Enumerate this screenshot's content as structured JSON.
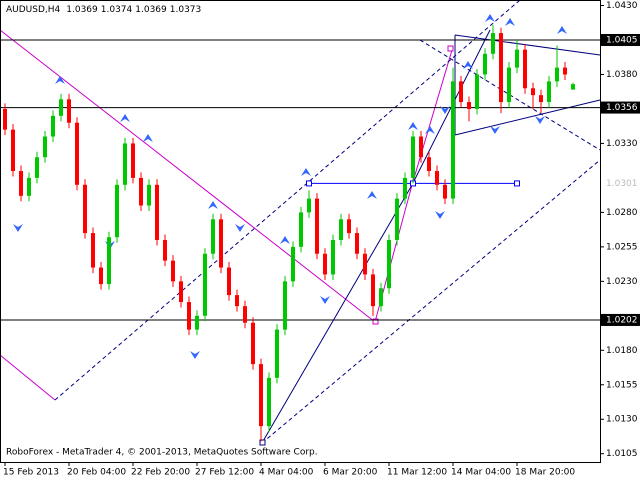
{
  "chart_data": {
    "type": "candlestick",
    "title": "AUDUSD,H4",
    "annotation": "RoboForex - MetaTrader 4, © 2001-2013, MetaQuotes Software Corp.",
    "up_color": "#00c800",
    "down_color": "#ff0000",
    "ylim": [
      1.0099,
      1.0434
    ],
    "yticks": [
      {
        "value": 1.043,
        "label": "1.0430"
      },
      {
        "value": 1.038,
        "label": "1.0380"
      },
      {
        "value": 1.033,
        "label": "1.0330"
      },
      {
        "value": 1.028,
        "label": "1.0280"
      },
      1.0255,
      {
        "value": 1.023,
        "label": "1.0230"
      },
      {
        "value": 1.018,
        "label": "1.0180"
      },
      1.0155,
      {
        "value": 1.013,
        "label": "1.0130"
      },
      1.0105
    ],
    "levels": [
      {
        "value": 1.0405,
        "color": "#000000",
        "label_style": "box"
      },
      {
        "value": 1.0356,
        "color": "#000000",
        "label_style": "box"
      },
      {
        "value": 1.0202,
        "color": "#000000",
        "label_style": "box"
      },
      {
        "value": 1.0301,
        "color": "#0000ff",
        "label_style": "plain"
      }
    ],
    "categories": [
      "15 Feb 2013",
      null,
      null,
      null,
      null,
      null,
      null,
      null,
      "20 Feb 04:00",
      null,
      null,
      null,
      null,
      null,
      null,
      null,
      "22 Feb 20:00",
      null,
      null,
      null,
      null,
      null,
      null,
      null,
      "27 Feb 12:00",
      null,
      null,
      null,
      null,
      null,
      null,
      null,
      "4 Mar 04:00",
      null,
      null,
      null,
      null,
      null,
      null,
      null,
      "6 Mar 20:00",
      null,
      null,
      null,
      null,
      null,
      null,
      null,
      "11 Mar 12:00",
      null,
      null,
      null,
      null,
      null,
      null,
      null,
      "14 Mar 04:00",
      null,
      null,
      null,
      null,
      null,
      null,
      null,
      "18 Mar 20:00",
      null,
      null,
      null,
      null,
      null,
      null,
      null
    ],
    "ohlc": [
      [
        1.0355,
        1.0359,
        1.0336,
        1.034
      ],
      [
        1.034,
        1.0344,
        1.0306,
        1.031
      ],
      [
        1.031,
        1.0314,
        1.0288,
        1.0292
      ],
      [
        1.0292,
        1.0309,
        1.0288,
        1.0305
      ],
      [
        1.0305,
        1.0324,
        1.0301,
        1.032
      ],
      [
        1.032,
        1.0339,
        1.0316,
        1.0335
      ],
      [
        1.0335,
        1.0354,
        1.0331,
        1.035
      ],
      [
        1.035,
        1.0366,
        1.0346,
        1.0362
      ],
      [
        1.0362,
        1.0366,
        1.0341,
        1.0345
      ],
      [
        1.0345,
        1.0349,
        1.0296,
        1.03
      ],
      [
        1.03,
        1.0304,
        1.0261,
        1.0265
      ],
      [
        1.0265,
        1.0269,
        1.0236,
        1.024
      ],
      [
        1.024,
        1.0244,
        1.0224,
        1.0228
      ],
      [
        1.0228,
        1.0266,
        1.0224,
        1.0262
      ],
      [
        1.0262,
        1.0304,
        1.0258,
        1.03
      ],
      [
        1.03,
        1.0334,
        1.0296,
        1.033
      ],
      [
        1.033,
        1.0334,
        1.0301,
        1.0305
      ],
      [
        1.0305,
        1.0309,
        1.0281,
        1.0285
      ],
      [
        1.0285,
        1.0304,
        1.0281,
        1.03
      ],
      [
        1.03,
        1.0304,
        1.0256,
        1.026
      ],
      [
        1.026,
        1.0264,
        1.0241,
        1.0245
      ],
      [
        1.0245,
        1.0249,
        1.0226,
        1.023
      ],
      [
        1.023,
        1.0234,
        1.0211,
        1.0215
      ],
      [
        1.0215,
        1.0219,
        1.0191,
        1.0195
      ],
      [
        1.0195,
        1.0209,
        1.0191,
        1.0205
      ],
      [
        1.0205,
        1.0254,
        1.0201,
        1.025
      ],
      [
        1.025,
        1.0279,
        1.0246,
        1.0275
      ],
      [
        1.0275,
        1.0279,
        1.0236,
        1.024
      ],
      [
        1.024,
        1.0244,
        1.0216,
        1.022
      ],
      [
        1.022,
        1.0224,
        1.0208,
        1.0212
      ],
      [
        1.0212,
        1.0216,
        1.0196,
        1.02
      ],
      [
        1.02,
        1.0204,
        1.0166,
        1.017
      ],
      [
        1.017,
        1.0174,
        1.0114,
        1.0125
      ],
      [
        1.0125,
        1.0164,
        1.0121,
        1.016
      ],
      [
        1.016,
        1.0199,
        1.0156,
        1.0195
      ],
      [
        1.0195,
        1.0234,
        1.0191,
        1.023
      ],
      [
        1.023,
        1.0259,
        1.0226,
        1.0255
      ],
      [
        1.0255,
        1.0284,
        1.0251,
        1.028
      ],
      [
        1.028,
        1.0296,
        1.0276,
        1.029
      ],
      [
        1.029,
        1.0294,
        1.0246,
        1.025
      ],
      [
        1.025,
        1.0254,
        1.0231,
        1.0235
      ],
      [
        1.0235,
        1.0264,
        1.0231,
        1.026
      ],
      [
        1.026,
        1.0279,
        1.0256,
        1.0275
      ],
      [
        1.0275,
        1.0279,
        1.0261,
        1.0265
      ],
      [
        1.0265,
        1.0269,
        1.0246,
        1.025
      ],
      [
        1.025,
        1.0254,
        1.0231,
        1.0235
      ],
      [
        1.0235,
        1.0239,
        1.0205,
        1.0212
      ],
      [
        1.0212,
        1.0229,
        1.0208,
        1.0225
      ],
      [
        1.0225,
        1.0264,
        1.0221,
        1.026
      ],
      [
        1.026,
        1.0294,
        1.0256,
        1.029
      ],
      [
        1.029,
        1.0309,
        1.0286,
        1.0305
      ],
      [
        1.0305,
        1.0339,
        1.0301,
        1.0335
      ],
      [
        1.0335,
        1.0339,
        1.0316,
        1.032
      ],
      [
        1.032,
        1.0324,
        1.0306,
        1.031
      ],
      [
        1.031,
        1.0314,
        1.0296,
        1.03
      ],
      [
        1.03,
        1.0304,
        1.0286,
        1.029
      ],
      [
        1.029,
        1.0385,
        1.0286,
        1.0375
      ],
      [
        1.0375,
        1.0379,
        1.0356,
        1.036
      ],
      [
        1.036,
        1.0364,
        1.0346,
        1.0355
      ],
      [
        1.0355,
        1.0384,
        1.0351,
        1.038
      ],
      [
        1.038,
        1.0399,
        1.0376,
        1.0395
      ],
      [
        1.0395,
        1.0416,
        1.0391,
        1.041
      ],
      [
        1.041,
        1.0414,
        1.0352,
        1.036
      ],
      [
        1.036,
        1.0389,
        1.0356,
        1.0385
      ],
      [
        1.0385,
        1.0405,
        1.0381,
        1.0398
      ],
      [
        1.0398,
        1.0402,
        1.0366,
        1.037
      ],
      [
        1.037,
        1.0374,
        1.0355,
        1.0365
      ],
      [
        1.0365,
        1.0369,
        1.0352,
        1.036
      ],
      [
        1.036,
        1.0379,
        1.0356,
        1.0375
      ],
      [
        1.0375,
        1.0401,
        1.0371,
        1.0385
      ],
      [
        1.0385,
        1.0389,
        1.0376,
        1.038
      ],
      [
        1.0369,
        1.0374,
        1.0369,
        1.0373
      ]
    ]
  }
}
